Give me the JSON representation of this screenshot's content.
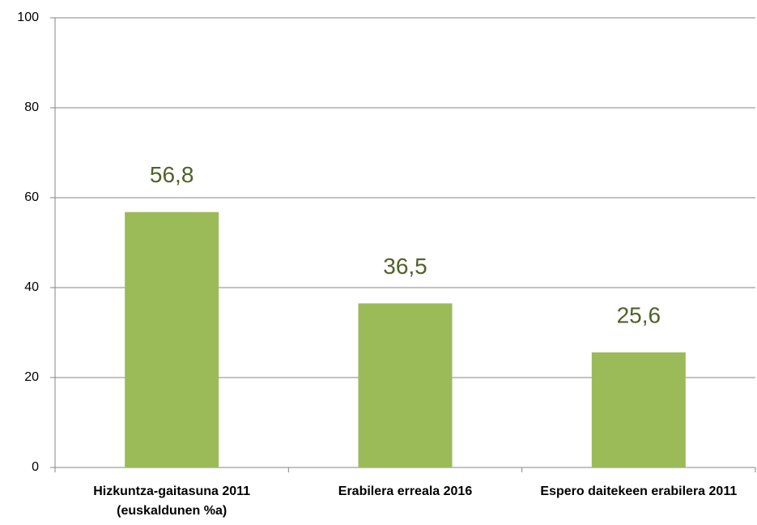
{
  "chart_data": {
    "type": "bar",
    "categories": [
      "Hizkuntza-gaitasuna 2011 (euskaldunen %a)",
      "Erabilera erreala 2016",
      "Espero daitekeen erabilera 2011"
    ],
    "values": [
      56.8,
      36.5,
      25.6
    ],
    "value_labels": [
      "56,8",
      "36,5",
      "25,6"
    ],
    "color": "#9bbb59",
    "label_color": "#4f6228",
    "ylim": [
      0,
      100
    ],
    "yticks": [
      0,
      20,
      40,
      60,
      80,
      100
    ],
    "grid": true
  }
}
